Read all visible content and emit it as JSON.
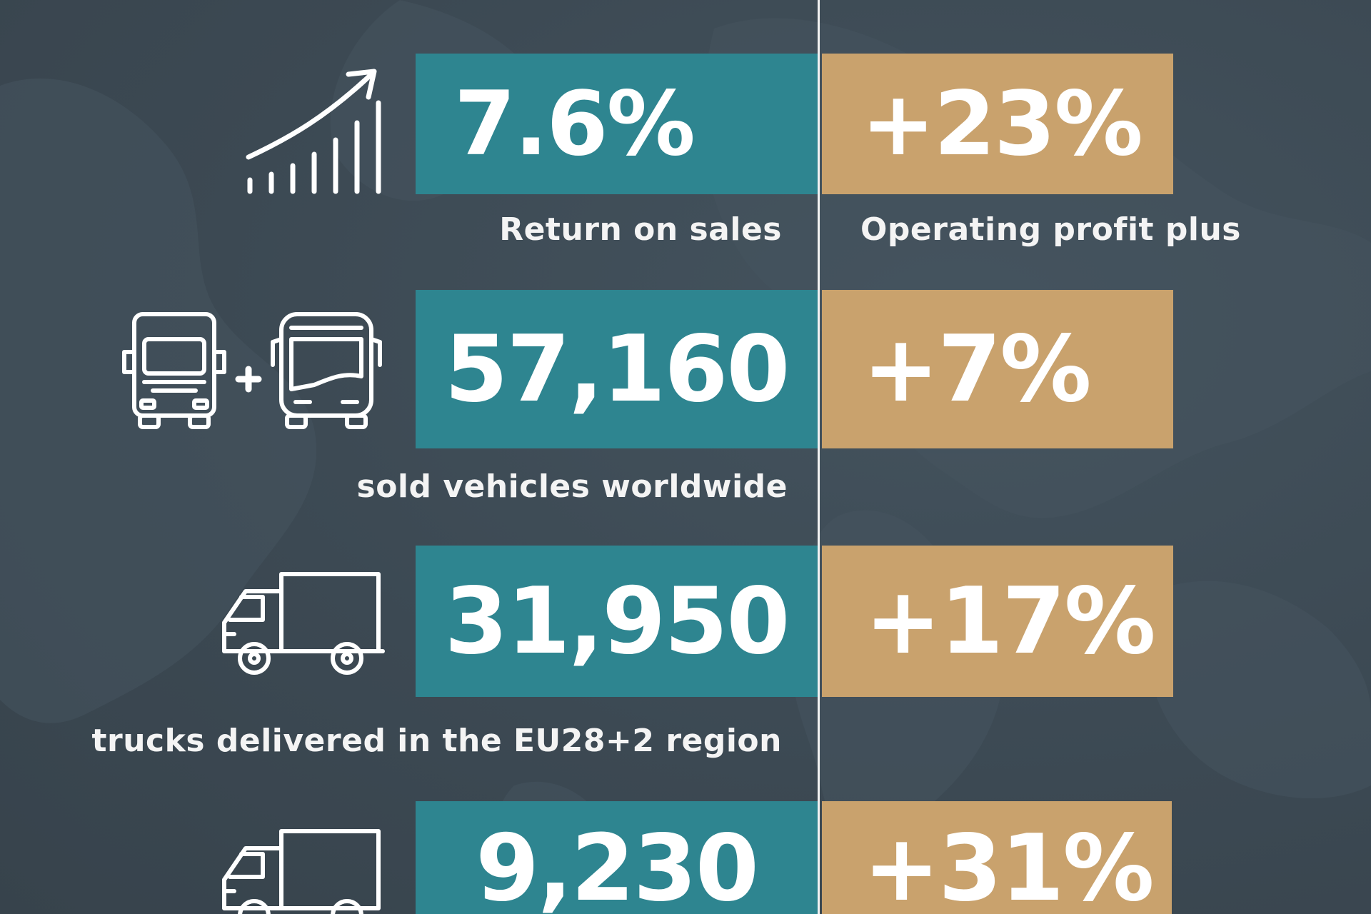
{
  "colors": {
    "background": "#3e4c57",
    "teal": "#2e8590",
    "tan": "#c9a26d",
    "text": "#ffffff"
  },
  "rows": [
    {
      "icon": "growth-chart-icon",
      "value": "7.6%",
      "change": "+23%",
      "label": "Return on sales",
      "change_label": "Operating profit plus"
    },
    {
      "icon": "truck-plus-bus-icon",
      "value": "57,160",
      "change": "+7%",
      "label": "sold vehicles worldwide"
    },
    {
      "icon": "delivery-truck-icon",
      "value": "31,950",
      "change": "+17%",
      "label": "trucks delivered in the EU28+2 region"
    },
    {
      "icon": "delivery-truck-icon",
      "value": "9,230",
      "change": "+31%"
    }
  ]
}
